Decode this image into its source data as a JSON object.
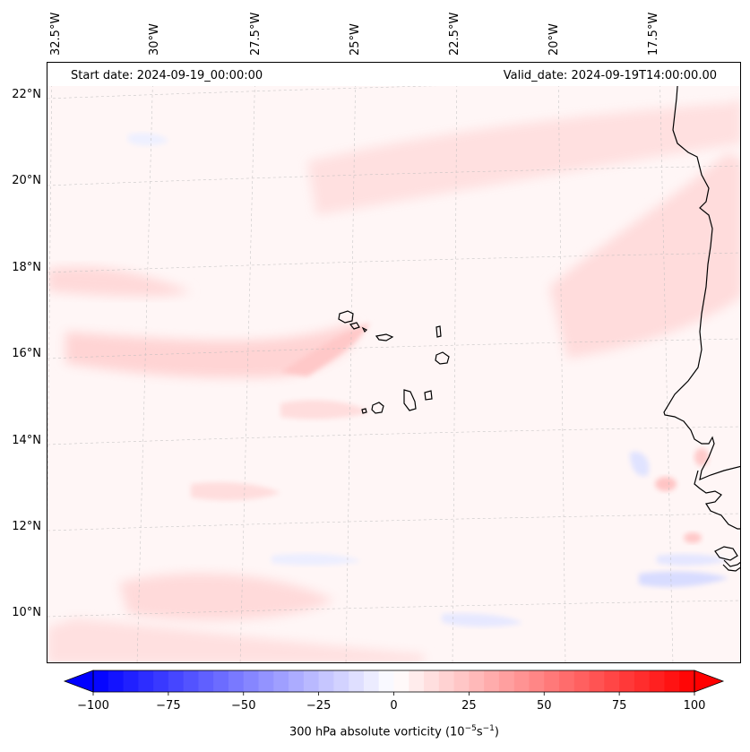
{
  "header": {
    "start_date": "Start date: 2024-09-19_00:00:00",
    "valid_date": "Valid_date: 2024-09-19T14:00:00.00"
  },
  "longitude_labels": [
    "32.5°W",
    "30°W",
    "27.5°W",
    "25°W",
    "22.5°W",
    "20°W",
    "17.5°W"
  ],
  "latitude_labels": [
    "22°N",
    "20°N",
    "18°N",
    "16°N",
    "14°N",
    "12°N",
    "10°N"
  ],
  "colorbar": {
    "min": -100,
    "max": 100,
    "ticks": [
      "−100",
      "−75",
      "−50",
      "−25",
      "0",
      "25",
      "50",
      "75",
      "100"
    ],
    "title_main": "300 hPa absolute vorticity (10",
    "title_exp1": "−5",
    "title_mid": "s",
    "title_exp2": "−1",
    "title_end": ")",
    "color_low": "#0000ff",
    "color_mid": "#ffffff",
    "color_high": "#ff0000"
  },
  "map": {
    "background_color": "#fff6f6",
    "coastline_color": "#000000",
    "features": [
      "cape-verde-islands",
      "west-africa-coastline"
    ]
  }
}
